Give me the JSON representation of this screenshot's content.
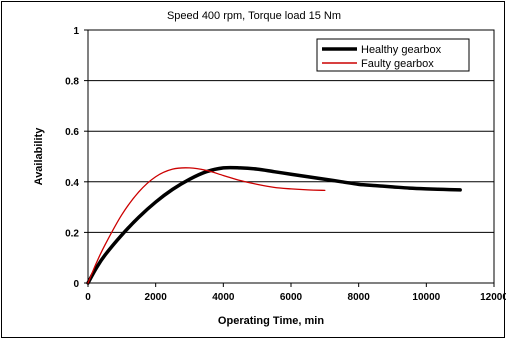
{
  "chart_data": {
    "type": "line",
    "title": "Speed 400 rpm, Torque load 15 Nm",
    "xlabel": "Operating Time, min",
    "ylabel": "Availability",
    "xlim": [
      0,
      12000
    ],
    "ylim": [
      0,
      1
    ],
    "x_ticks": [
      0,
      2000,
      4000,
      6000,
      8000,
      10000,
      12000
    ],
    "x_tick_labels": [
      "0",
      "2000",
      "4000",
      "6000",
      "8000",
      "10000",
      "12000"
    ],
    "y_ticks": [
      0,
      0.2,
      0.4,
      0.6,
      0.8,
      1
    ],
    "y_tick_labels": [
      "0",
      "0.2",
      "0.4",
      "0.6",
      "0.8",
      "1"
    ],
    "grid": {
      "horizontal": true,
      "vertical": false
    },
    "legend_position": "top-right",
    "series": [
      {
        "name": "Healthy gearbox",
        "color": "#000000",
        "x": [
          0,
          250,
          500,
          1000,
          1500,
          2000,
          2500,
          3000,
          3500,
          4000,
          4500,
          5000,
          5500,
          6000,
          6500,
          7000,
          7500,
          8000,
          8500,
          9000,
          9500,
          10000,
          10500,
          11000
        ],
        "y": [
          0,
          0.06,
          0.11,
          0.19,
          0.26,
          0.32,
          0.37,
          0.41,
          0.44,
          0.455,
          0.455,
          0.45,
          0.44,
          0.43,
          0.42,
          0.41,
          0.4,
          0.39,
          0.385,
          0.38,
          0.375,
          0.372,
          0.37,
          0.368
        ]
      },
      {
        "name": "Faulty gearbox",
        "color": "#cc0000",
        "x": [
          0,
          250,
          500,
          1000,
          1500,
          2000,
          2500,
          3000,
          3500,
          4000,
          4500,
          5000,
          5500,
          6000,
          6500,
          7000
        ],
        "y": [
          0,
          0.08,
          0.15,
          0.27,
          0.36,
          0.42,
          0.45,
          0.455,
          0.445,
          0.425,
          0.405,
          0.39,
          0.378,
          0.372,
          0.368,
          0.366
        ]
      }
    ]
  }
}
